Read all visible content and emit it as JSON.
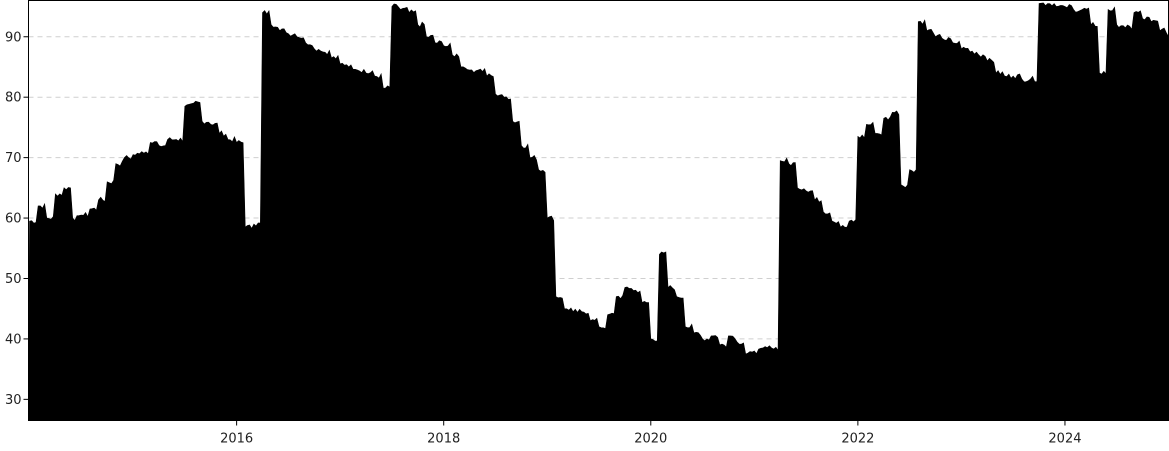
{
  "chart_data": {
    "type": "area",
    "title": "",
    "xlabel": "",
    "ylabel": "",
    "x_ticks": [
      "2016",
      "2018",
      "2020",
      "2022",
      "2024"
    ],
    "y_ticks": [
      30,
      40,
      50,
      60,
      70,
      80,
      90
    ],
    "xlim": [
      "2014-01",
      "2024-12"
    ],
    "ylim": [
      26.5,
      96
    ],
    "grid": {
      "horizontal": true,
      "style": "dashed"
    },
    "fill_color": "#000000",
    "series": [
      {
        "values": [
          [
            "2014-01",
            59.5
          ],
          [
            "2014-02",
            62
          ],
          [
            "2014-03",
            60
          ],
          [
            "2014-04",
            64
          ],
          [
            "2014-05",
            65
          ],
          [
            "2014-06",
            60
          ],
          [
            "2014-07",
            60.5
          ],
          [
            "2014-08",
            61.5
          ],
          [
            "2014-09",
            63
          ],
          [
            "2014-10",
            66
          ],
          [
            "2014-11",
            69
          ],
          [
            "2014-12",
            70
          ],
          [
            "2015-01",
            70.5
          ],
          [
            "2015-02",
            71
          ],
          [
            "2015-03",
            72.5
          ],
          [
            "2015-04",
            72
          ],
          [
            "2015-05",
            73
          ],
          [
            "2015-06",
            73
          ],
          [
            "2015-07",
            78.5
          ],
          [
            "2015-08",
            79
          ],
          [
            "2015-09",
            76
          ],
          [
            "2015-10",
            75.5
          ],
          [
            "2015-11",
            74
          ],
          [
            "2015-12",
            73
          ],
          [
            "2016-01",
            72.5
          ],
          [
            "2016-02",
            58.5
          ],
          [
            "2016-03",
            59
          ],
          [
            "2016-04",
            94
          ],
          [
            "2016-05",
            92
          ],
          [
            "2016-06",
            91
          ],
          [
            "2016-07",
            90.5
          ],
          [
            "2016-08",
            90
          ],
          [
            "2016-09",
            89
          ],
          [
            "2016-10",
            88
          ],
          [
            "2016-11",
            87.5
          ],
          [
            "2016-12",
            86.5
          ],
          [
            "2017-01",
            85.5
          ],
          [
            "2017-02",
            85
          ],
          [
            "2017-03",
            84.5
          ],
          [
            "2017-04",
            84
          ],
          [
            "2017-05",
            83.5
          ],
          [
            "2017-06",
            81.5
          ],
          [
            "2017-07",
            95
          ],
          [
            "2017-08",
            94.5
          ],
          [
            "2017-09",
            94
          ],
          [
            "2017-10",
            92
          ],
          [
            "2017-11",
            90
          ],
          [
            "2017-12",
            89
          ],
          [
            "2018-01",
            88.5
          ],
          [
            "2018-02",
            87
          ],
          [
            "2018-03",
            85
          ],
          [
            "2018-04",
            84.5
          ],
          [
            "2018-05",
            84.5
          ],
          [
            "2018-06",
            83.5
          ],
          [
            "2018-07",
            80.5
          ],
          [
            "2018-08",
            80
          ],
          [
            "2018-09",
            76
          ],
          [
            "2018-10",
            72
          ],
          [
            "2018-11",
            70
          ],
          [
            "2018-12",
            68
          ],
          [
            "2019-01",
            60
          ],
          [
            "2019-02",
            47
          ],
          [
            "2019-03",
            45
          ],
          [
            "2019-04",
            44.5
          ],
          [
            "2019-05",
            44.5
          ],
          [
            "2019-06",
            43
          ],
          [
            "2019-07",
            42
          ],
          [
            "2019-08",
            44
          ],
          [
            "2019-09",
            47
          ],
          [
            "2019-10",
            48.5
          ],
          [
            "2019-11",
            48
          ],
          [
            "2019-12",
            46
          ],
          [
            "2020-01",
            40
          ],
          [
            "2020-02",
            54
          ],
          [
            "2020-03",
            48.5
          ],
          [
            "2020-04",
            47
          ],
          [
            "2020-05",
            42
          ],
          [
            "2020-06",
            41
          ],
          [
            "2020-07",
            40
          ],
          [
            "2020-08",
            40.5
          ],
          [
            "2020-09",
            39
          ],
          [
            "2020-10",
            40.5
          ],
          [
            "2020-11",
            39.5
          ],
          [
            "2020-12",
            37.5
          ],
          [
            "2021-01",
            38
          ],
          [
            "2021-02",
            38.5
          ],
          [
            "2021-03",
            38.5
          ],
          [
            "2021-04",
            69.5
          ],
          [
            "2021-05",
            69
          ],
          [
            "2021-06",
            65
          ],
          [
            "2021-07",
            64.5
          ],
          [
            "2021-08",
            63
          ],
          [
            "2021-09",
            61
          ],
          [
            "2021-10",
            59.5
          ],
          [
            "2021-11",
            58.5
          ],
          [
            "2021-12",
            59.5
          ],
          [
            "2022-01",
            73.5
          ],
          [
            "2022-02",
            75.5
          ],
          [
            "2022-03",
            74
          ],
          [
            "2022-04",
            76.5
          ],
          [
            "2022-05",
            77.5
          ],
          [
            "2022-06",
            65.5
          ],
          [
            "2022-07",
            68
          ],
          [
            "2022-08",
            92.5
          ],
          [
            "2022-09",
            91
          ],
          [
            "2022-10",
            90
          ],
          [
            "2022-11",
            89.5
          ],
          [
            "2022-12",
            89
          ],
          [
            "2023-01",
            88
          ],
          [
            "2023-02",
            87.5
          ],
          [
            "2023-03",
            87
          ],
          [
            "2023-04",
            86
          ],
          [
            "2023-05",
            84
          ],
          [
            "2023-06",
            83.5
          ],
          [
            "2023-07",
            83.5
          ],
          [
            "2023-08",
            83
          ],
          [
            "2023-09",
            83
          ],
          [
            "2023-10",
            95.5
          ],
          [
            "2023-11",
            95.5
          ],
          [
            "2023-12",
            95
          ],
          [
            "2024-01",
            95
          ],
          [
            "2024-02",
            94.5
          ],
          [
            "2024-03",
            94.5
          ],
          [
            "2024-04",
            92
          ],
          [
            "2024-05",
            84
          ],
          [
            "2024-06",
            94.5
          ],
          [
            "2024-07",
            92
          ],
          [
            "2024-08",
            91.5
          ],
          [
            "2024-09",
            94
          ],
          [
            "2024-10",
            93
          ],
          [
            "2024-11",
            92.5
          ],
          [
            "2024-12",
            91
          ]
        ]
      }
    ]
  }
}
